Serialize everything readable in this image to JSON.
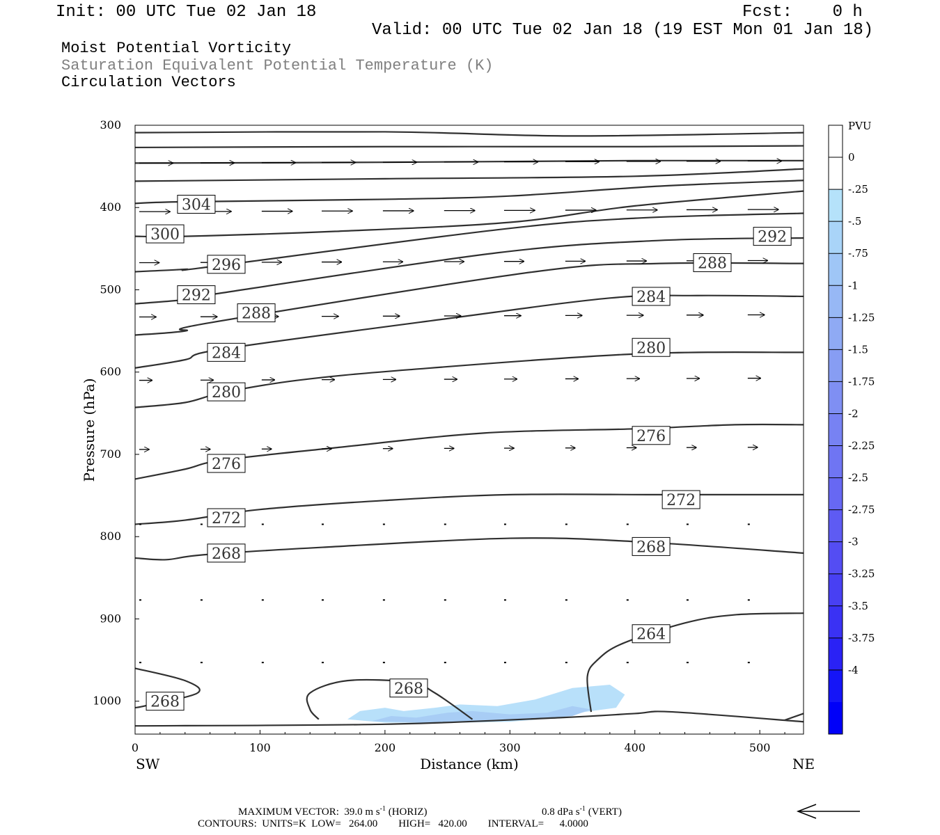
{
  "header": {
    "init": "Init: 00 UTC Tue 02 Jan 18",
    "fcst": "Fcst:    0 h",
    "valid": "Valid: 00 UTC Tue 02 Jan 18 (19 EST Mon 01 Jan 18)",
    "line1": "Moist Potential Vorticity",
    "line2": "Saturation Equivalent Potential Temperature (K)",
    "line3": "Circulation Vectors"
  },
  "colors": {
    "subtitle2": "#808080",
    "contour": "#303030",
    "shade_light": "#b8e0fa",
    "shade_mid": "#a8cdf5"
  },
  "chart_data": {
    "type": "contour",
    "xlabel": "Distance (km)",
    "ylabel": "Pressure (hPa)",
    "xlim": [
      0,
      535
    ],
    "ylim": [
      1040,
      300
    ],
    "xticks": [
      0,
      100,
      200,
      300,
      400,
      500
    ],
    "yticks": [
      300,
      400,
      500,
      600,
      700,
      800,
      900,
      1000
    ],
    "x_end_labels": {
      "left": "SW",
      "right": "NE"
    },
    "colorbar": {
      "unit": "PVU",
      "ticks": [
        "0",
        "-.25",
        "-.5",
        "-.75",
        "-1",
        "-1.25",
        "-1.5",
        "-1.75",
        "-2",
        "-2.25",
        "-2.5",
        "-2.75",
        "-3",
        "-3.25",
        "-3.5",
        "-3.75",
        "-4"
      ],
      "colors": [
        "#ffffff",
        "#ffffff",
        "#b5e2fa",
        "#a9d4f8",
        "#9fc6f6",
        "#97b8f5",
        "#8faaf4",
        "#879df3",
        "#7f8ff3",
        "#7782f3",
        "#6f75f3",
        "#6768f3",
        "#5e5bf3",
        "#544df3",
        "#4840f3",
        "#3a32f4",
        "#2a22f5",
        "#1515f7",
        "#0000f8"
      ]
    },
    "contours": [
      {
        "level": 264,
        "points": [
          [
            365,
            1013
          ],
          [
            362,
            970
          ],
          [
            370,
            950
          ],
          [
            390,
            930
          ],
          [
            440,
            905
          ],
          [
            480,
            895
          ],
          [
            535,
            893
          ]
        ]
      },
      {
        "level": 268,
        "points": [
          [
            0,
            1008
          ],
          [
            10,
            1005
          ],
          [
            50,
            990
          ],
          [
            40,
            975
          ],
          [
            0,
            960
          ]
        ]
      },
      {
        "level": 268,
        "points": [
          [
            147,
            1022
          ],
          [
            140,
            1010
          ],
          [
            140,
            990
          ],
          [
            170,
            975
          ],
          [
            220,
            977
          ],
          [
            240,
            990
          ],
          [
            270,
            1022
          ]
        ]
      },
      {
        "level": 268,
        "points": [
          [
            0,
            826
          ],
          [
            25,
            828
          ],
          [
            55,
            822
          ],
          [
            150,
            813
          ],
          [
            300,
            802
          ],
          [
            400,
            806
          ],
          [
            535,
            820
          ]
        ]
      },
      {
        "level": 272,
        "points": [
          [
            0,
            785
          ],
          [
            40,
            780
          ],
          [
            100,
            767
          ],
          [
            200,
            756
          ],
          [
            300,
            749
          ],
          [
            420,
            749
          ],
          [
            535,
            749
          ]
        ]
      },
      {
        "level": 276,
        "points": [
          [
            0,
            730
          ],
          [
            40,
            718
          ],
          [
            70,
            707
          ],
          [
            160,
            692
          ],
          [
            280,
            674
          ],
          [
            400,
            669
          ],
          [
            480,
            664
          ],
          [
            535,
            664
          ]
        ]
      },
      {
        "level": 280,
        "points": [
          [
            0,
            643
          ],
          [
            40,
            637
          ],
          [
            70,
            625
          ],
          [
            130,
            610
          ],
          [
            220,
            597
          ],
          [
            400,
            578
          ],
          [
            535,
            576
          ]
        ]
      },
      {
        "level": 284,
        "points": [
          [
            0,
            595
          ],
          [
            40,
            585
          ],
          [
            70,
            572
          ],
          [
            250,
            535
          ],
          [
            380,
            510
          ],
          [
            450,
            507
          ],
          [
            535,
            508
          ]
        ]
      },
      {
        "level": 288,
        "points": [
          [
            0,
            555
          ],
          [
            40,
            550
          ],
          [
            60,
            540
          ],
          [
            320,
            478
          ],
          [
            420,
            468
          ],
          [
            535,
            468
          ]
        ]
      },
      {
        "level": 292,
        "points": [
          [
            0,
            517
          ],
          [
            40,
            512
          ],
          [
            60,
            506
          ],
          [
            290,
            455
          ],
          [
            420,
            440
          ],
          [
            535,
            437
          ]
        ]
      },
      {
        "level": 296,
        "points": [
          [
            0,
            478
          ],
          [
            40,
            475
          ],
          [
            60,
            472
          ],
          [
            290,
            427
          ],
          [
            400,
            413
          ],
          [
            535,
            407
          ]
        ]
      },
      {
        "level": 300,
        "points": [
          [
            0,
            435
          ],
          [
            40,
            435
          ],
          [
            160,
            429
          ],
          [
            300,
            418
          ],
          [
            400,
            398
          ],
          [
            535,
            380
          ]
        ]
      },
      {
        "level": 304,
        "points": [
          [
            0,
            395
          ],
          [
            40,
            393
          ],
          [
            200,
            390
          ],
          [
            300,
            386
          ],
          [
            420,
            374
          ],
          [
            535,
            367
          ]
        ]
      },
      {
        "level": null,
        "points": [
          [
            0,
            368
          ],
          [
            200,
            365
          ],
          [
            400,
            362
          ],
          [
            535,
            353
          ]
        ]
      },
      {
        "level": null,
        "points": [
          [
            0,
            346
          ],
          [
            200,
            345
          ],
          [
            400,
            343
          ],
          [
            535,
            343
          ]
        ]
      },
      {
        "level": null,
        "points": [
          [
            0,
            327
          ],
          [
            200,
            326
          ],
          [
            400,
            326
          ],
          [
            535,
            325
          ]
        ]
      },
      {
        "level": null,
        "points": [
          [
            0,
            309
          ],
          [
            200,
            308
          ],
          [
            350,
            313
          ],
          [
            535,
            309
          ]
        ]
      },
      {
        "level": null,
        "points": [
          [
            0,
            1030
          ],
          [
            200,
            1028
          ],
          [
            340,
            1020
          ],
          [
            400,
            1015
          ],
          [
            430,
            1013
          ],
          [
            535,
            1025
          ]
        ]
      },
      {
        "level": null,
        "points": [
          [
            520,
            1023
          ],
          [
            535,
            1015
          ]
        ]
      }
    ],
    "contour_labels": [
      {
        "text": "304",
        "x": 49,
        "p": 396
      },
      {
        "text": "300",
        "x": 24,
        "p": 432
      },
      {
        "text": "296",
        "x": 73,
        "p": 469
      },
      {
        "text": "292",
        "x": 49,
        "p": 506
      },
      {
        "text": "288",
        "x": 97,
        "p": 528
      },
      {
        "text": "284",
        "x": 73,
        "p": 576
      },
      {
        "text": "280",
        "x": 73,
        "p": 624
      },
      {
        "text": "276",
        "x": 73,
        "p": 711
      },
      {
        "text": "272",
        "x": 73,
        "p": 777
      },
      {
        "text": "268",
        "x": 73,
        "p": 820
      },
      {
        "text": "268",
        "x": 24,
        "p": 1000
      },
      {
        "text": "268",
        "x": 219,
        "p": 984
      },
      {
        "text": "264",
        "x": 413,
        "p": 918
      },
      {
        "text": "268",
        "x": 413,
        "p": 812
      },
      {
        "text": "272",
        "x": 437,
        "p": 755
      },
      {
        "text": "276",
        "x": 413,
        "p": 677
      },
      {
        "text": "280",
        "x": 413,
        "p": 570
      },
      {
        "text": "284",
        "x": 413,
        "p": 508
      },
      {
        "text": "288",
        "x": 462,
        "p": 467
      },
      {
        "text": "292",
        "x": 510,
        "p": 435
      }
    ],
    "shading": [
      {
        "value": -0.25,
        "points": [
          [
            170,
            1022
          ],
          [
            180,
            1012
          ],
          [
            200,
            1008
          ],
          [
            215,
            1012
          ],
          [
            240,
            1008
          ],
          [
            260,
            1004
          ],
          [
            290,
            1006
          ],
          [
            320,
            998
          ],
          [
            350,
            984
          ],
          [
            380,
            980
          ],
          [
            392,
            992
          ],
          [
            385,
            1008
          ],
          [
            360,
            1013
          ],
          [
            340,
            1020
          ],
          [
            300,
            1025
          ],
          [
            260,
            1026
          ],
          [
            200,
            1026
          ]
        ]
      },
      {
        "value": -0.5,
        "points": [
          [
            190,
            1024
          ],
          [
            205,
            1018
          ],
          [
            225,
            1020
          ],
          [
            250,
            1014
          ],
          [
            270,
            1012
          ],
          [
            300,
            1016
          ],
          [
            330,
            1014
          ],
          [
            350,
            1006
          ],
          [
            365,
            1010
          ],
          [
            350,
            1018
          ],
          [
            320,
            1022
          ],
          [
            280,
            1025
          ],
          [
            230,
            1026
          ]
        ]
      }
    ],
    "vector_rows": [
      {
        "p": 346,
        "dx": 40
      },
      {
        "p": 405,
        "dx": 36
      },
      {
        "p": 467,
        "dx": 22
      },
      {
        "p": 533,
        "dx": 18
      },
      {
        "p": 610,
        "dx": 13
      },
      {
        "p": 694,
        "dx": 9
      },
      {
        "p": 785,
        "dx": 1
      },
      {
        "p": 877,
        "dx": 2
      },
      {
        "p": 953,
        "dx": 2
      }
    ],
    "max_vector": "MAXIMUM VECTOR:  39.0 m s",
    "max_vector_h": "(HORIZ)",
    "max_vector_v": "0.8 dPa s",
    "max_vector_v2": "(VERT)",
    "exp": "-1",
    "contour_info": "CONTOURS:  UNITS=K  LOW=   264.00        HIGH=   420.00        INTERVAL=      4.0000"
  }
}
